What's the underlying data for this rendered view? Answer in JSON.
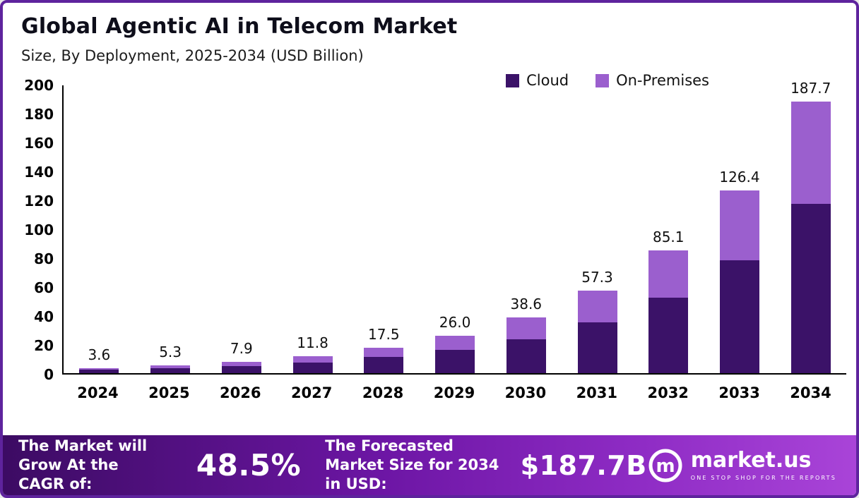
{
  "header": {
    "title": "Global Agentic AI in Telecom Market",
    "subtitle": "Size, By Deployment, 2025-2034 (USD Billion)"
  },
  "legend": [
    {
      "label": "Cloud",
      "color": "#3b1268"
    },
    {
      "label": "On-Premises",
      "color": "#9b5fce"
    }
  ],
  "chart_data": {
    "type": "bar",
    "stacked": true,
    "title": "Global Agentic AI in Telecom Market Size, By Deployment, 2025-2034 (USD Billion)",
    "categories": [
      "2024",
      "2025",
      "2026",
      "2027",
      "2028",
      "2029",
      "2030",
      "2031",
      "2032",
      "2033",
      "2034"
    ],
    "series": [
      {
        "name": "Cloud",
        "color": "#3b1268",
        "values": [
          2.4,
          3.4,
          5.0,
          7.3,
          11.0,
          16.0,
          23.5,
          35.0,
          52.0,
          78.0,
          117.0
        ]
      },
      {
        "name": "On-Premises",
        "color": "#9b5fce",
        "values": [
          1.2,
          1.9,
          2.9,
          4.5,
          6.5,
          10.0,
          15.1,
          22.3,
          33.1,
          48.4,
          70.7
        ]
      }
    ],
    "totals": [
      3.6,
      5.3,
      7.9,
      11.8,
      17.5,
      26.0,
      38.6,
      57.3,
      85.1,
      126.4,
      187.7
    ],
    "total_labels": [
      "3.6",
      "5.3",
      "7.9",
      "11.8",
      "17.5",
      "26.0",
      "38.6",
      "57.3",
      "85.1",
      "126.4",
      "187.7"
    ],
    "xlabel": "",
    "ylabel": "",
    "ylim": [
      0,
      200
    ],
    "yticks": [
      0,
      20,
      40,
      60,
      80,
      100,
      120,
      140,
      160,
      180,
      200
    ],
    "grid": false,
    "legend_position": "top-right"
  },
  "footer": {
    "cagr_label": "The Market will Grow At the CAGR of:",
    "cagr_value": "48.5%",
    "forecast_label": "The Forecasted Market Size for 2034 in USD:",
    "forecast_value": "$187.7B",
    "brand": "market.us",
    "brand_tagline": "ONE STOP SHOP FOR THE REPORTS"
  }
}
